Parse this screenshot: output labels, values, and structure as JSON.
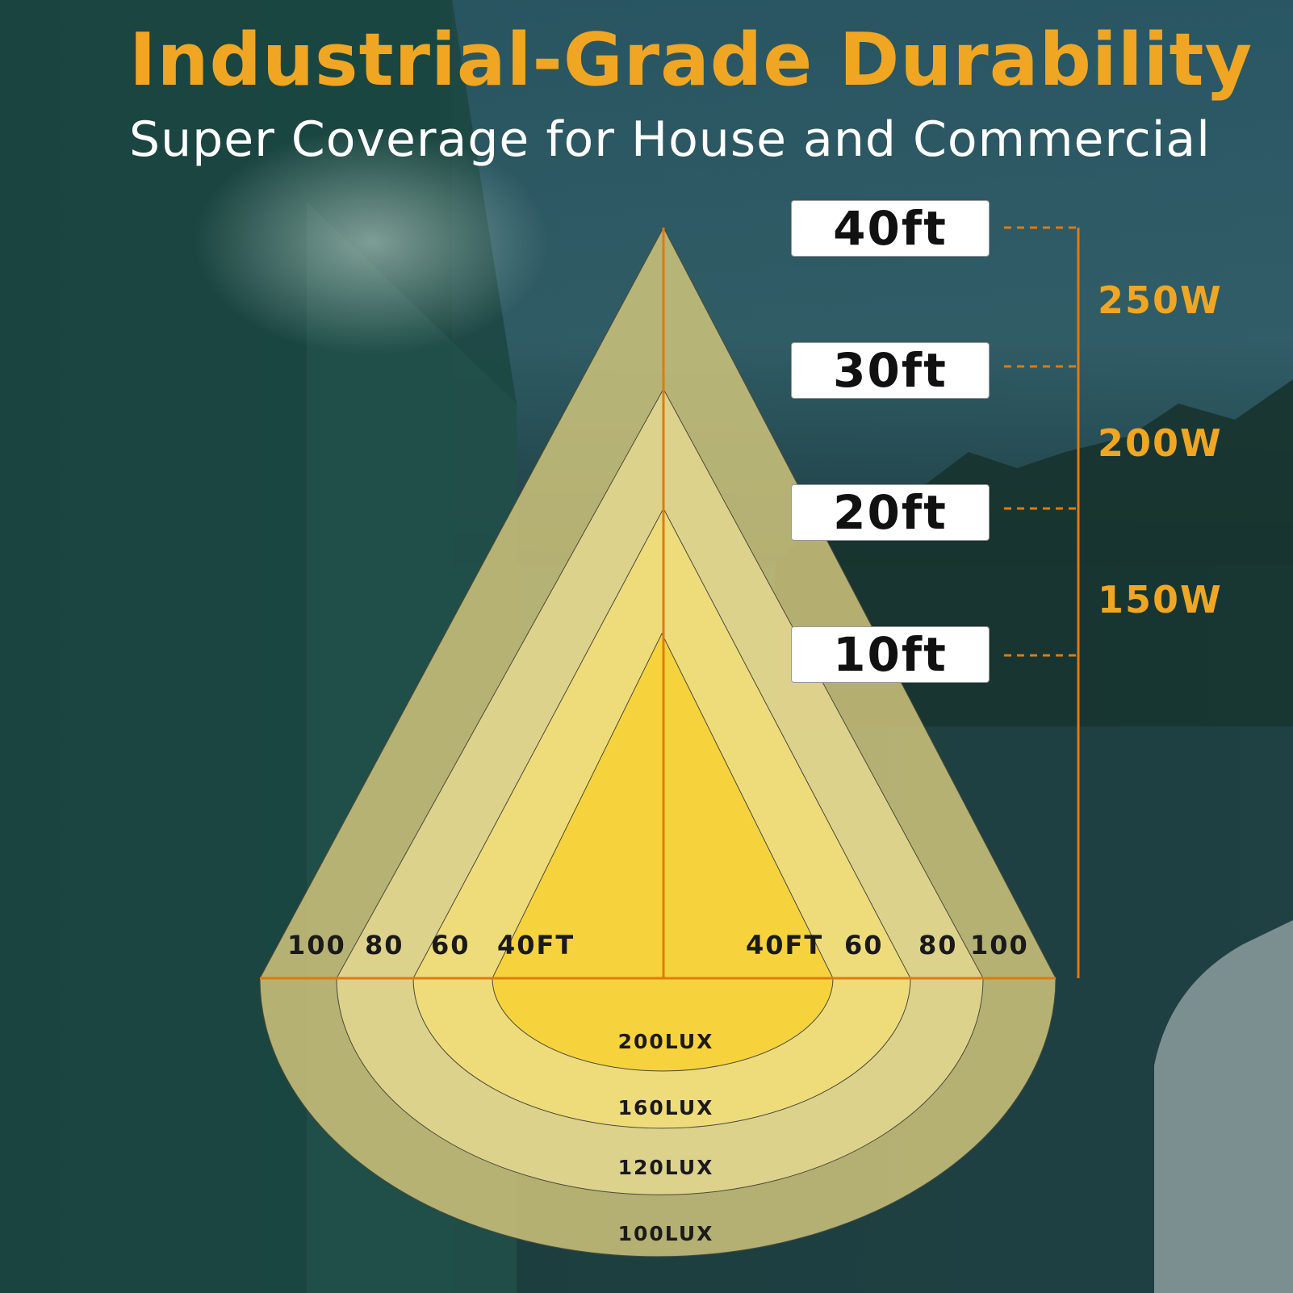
{
  "title": "Industrial-Grade Durability",
  "subtitle": "Super Coverage for House and Commercial",
  "heights": [
    "40ft",
    "30ft",
    "20ft",
    "10ft"
  ],
  "wattages": [
    "250W",
    "200W",
    "150W"
  ],
  "left_distance_labels": [
    "100",
    "80",
    "60",
    "40FT"
  ],
  "right_distance_labels": [
    "40FT",
    "60",
    "80",
    "100"
  ],
  "lux_levels": [
    "200LUX",
    "160LUX",
    "120LUX",
    "100LUX"
  ],
  "colors": {
    "accent": "#f0a623",
    "guide_line": "#e07a10",
    "zone_outer": "#c9c07a",
    "zone_2": "#e3d690",
    "zone_3": "#efdc7a",
    "zone_inner": "#f6d23a"
  }
}
